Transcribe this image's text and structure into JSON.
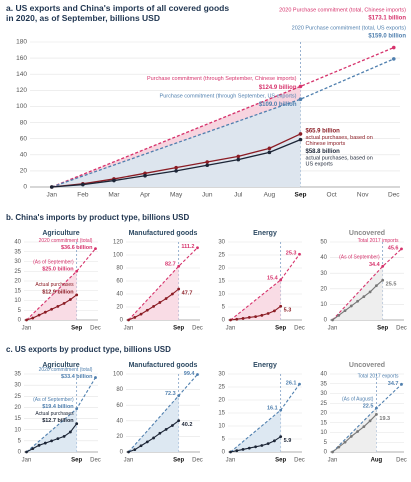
{
  "headings": [
    "b. China's imports by product type, billions USD",
    "c. US exports by product type, billions USD"
  ],
  "chart_data": [
    {
      "type": "line",
      "title": "a. US exports and China's imports of all covered goods in 2020, as of September, billions USD",
      "title_color": "#1f3550",
      "xlim": [
        0.3,
        12.2
      ],
      "xticks": [
        {
          "value": 1,
          "label": "Jan"
        },
        {
          "value": 2,
          "label": "Feb"
        },
        {
          "value": 3,
          "label": "Mar"
        },
        {
          "value": 4,
          "label": "Apr"
        },
        {
          "value": 5,
          "label": "May"
        },
        {
          "value": 6,
          "label": "Jun"
        },
        {
          "value": 7,
          "label": "Jul"
        },
        {
          "value": 8,
          "label": "Aug"
        },
        {
          "value": 9,
          "label": "Sep"
        },
        {
          "value": 10,
          "label": "Oct"
        },
        {
          "value": 11,
          "label": "Nov"
        },
        {
          "value": 12,
          "label": "Dec"
        }
      ],
      "ylim": [
        0,
        180
      ],
      "yticks": [
        0,
        20,
        40,
        60,
        80,
        100,
        120,
        140,
        160,
        180
      ],
      "highlight_x": 9,
      "grid": true,
      "series": [
        {
          "color": "#d6336c",
          "dash": true,
          "fill": "#f7d4df",
          "x": [
            1,
            9,
            12
          ],
          "values": [
            0,
            124.9,
            173.1
          ],
          "value_labels": [
            null,
            "$124.9 billion",
            "$173.1 billion"
          ],
          "notes": [
            null,
            "Purchase commitment (through September, Chinese imports)",
            "2020 Purchase commitment (total, Chinese imports)"
          ]
        },
        {
          "color": "#4f7fae",
          "dash": true,
          "fill": "#dde5ee",
          "x": [
            1,
            9,
            12
          ],
          "values": [
            0,
            109.0,
            159.0
          ],
          "value_labels": [
            null,
            "$109.0 billion",
            "$159.0 billion"
          ],
          "notes": [
            null,
            "Purchase commitment (through September, US exports)",
            "2020 Purchase commitment (total, US exports)"
          ]
        },
        {
          "color": "#8b1c24",
          "x": [
            1,
            2,
            3,
            4,
            5,
            6,
            7,
            8,
            9
          ],
          "values": [
            0,
            4,
            10,
            17,
            24,
            31,
            38,
            48,
            65.9
          ],
          "value_labels": [
            null,
            null,
            null,
            null,
            null,
            null,
            null,
            null,
            "$65.9 billion"
          ],
          "notes": [
            null,
            null,
            null,
            null,
            null,
            null,
            null,
            null,
            "actual purchases, based on Chinese imports"
          ]
        },
        {
          "color": "#1c2536",
          "x": [
            1,
            2,
            3,
            4,
            5,
            6,
            7,
            8,
            9
          ],
          "values": [
            0,
            3,
            8,
            14,
            20,
            27,
            34,
            43,
            58.8
          ],
          "value_labels": [
            null,
            null,
            null,
            null,
            null,
            null,
            null,
            null,
            "$58.8 billion"
          ],
          "notes": [
            null,
            null,
            null,
            null,
            null,
            null,
            null,
            null,
            "actual purchases, based on US exports"
          ]
        }
      ]
    },
    {
      "type": "line",
      "title": "Agriculture",
      "title_color": "#2d4a63",
      "xlim": [
        0.6,
        12.4
      ],
      "xticks": [
        {
          "value": 1,
          "label": "Jan"
        },
        {
          "value": 9,
          "label": "Sep"
        },
        {
          "value": 12,
          "label": "Dec"
        }
      ],
      "ylim": [
        0,
        40
      ],
      "yticks": [
        0,
        5,
        10,
        15,
        20,
        25,
        30,
        35,
        40
      ],
      "highlight_x": 9,
      "grid": true,
      "series": [
        {
          "color": "#d6336c",
          "dash": true,
          "fill": "#f9dce5",
          "x": [
            1,
            9,
            12
          ],
          "values": [
            0,
            25.0,
            36.6
          ],
          "value_labels": [
            null,
            "$25.0 billion",
            "$36.6 billion"
          ],
          "notes": [
            null,
            "(As of September)",
            "2020 commitment (total)"
          ]
        },
        {
          "color": "#8b1c24",
          "x": [
            1,
            2,
            3,
            4,
            5,
            6,
            7,
            8,
            9
          ],
          "values": [
            0,
            1,
            2.5,
            4,
            5.5,
            7,
            8.5,
            10.5,
            12.9
          ],
          "value_labels": [
            null,
            null,
            null,
            null,
            null,
            null,
            null,
            null,
            "$12.9 billion"
          ],
          "notes": [
            null,
            null,
            null,
            null,
            null,
            null,
            null,
            null,
            "Actual purchases"
          ]
        }
      ]
    },
    {
      "type": "line",
      "title": "Manufactured goods",
      "title_color": "#2d4a63",
      "xlim": [
        0.6,
        12.4
      ],
      "xticks": [
        {
          "value": 1,
          "label": "Jan"
        },
        {
          "value": 9,
          "label": "Sep"
        },
        {
          "value": 12,
          "label": "Dec"
        }
      ],
      "ylim": [
        0,
        120
      ],
      "yticks": [
        0,
        20,
        40,
        60,
        80,
        100,
        120
      ],
      "highlight_x": 9,
      "grid": true,
      "series": [
        {
          "color": "#d6336c",
          "dash": true,
          "fill": "#f9dce5",
          "x": [
            1,
            9,
            12
          ],
          "values": [
            0,
            82.7,
            111.2
          ]
        },
        {
          "color": "#8b1c24",
          "x": [
            1,
            2,
            3,
            4,
            5,
            6,
            7,
            8,
            9
          ],
          "values": [
            0,
            4,
            9,
            15,
            21,
            27,
            33,
            40,
            47.7
          ]
        }
      ]
    },
    {
      "type": "line",
      "title": "Energy",
      "title_color": "#2d4a63",
      "xlim": [
        0.6,
        12.4
      ],
      "xticks": [
        {
          "value": 1,
          "label": "Jan"
        },
        {
          "value": 9,
          "label": "Sep"
        },
        {
          "value": 12,
          "label": "Dec"
        }
      ],
      "ylim": [
        0,
        30
      ],
      "yticks": [
        0,
        5,
        10,
        15,
        20,
        25,
        30
      ],
      "highlight_x": 9,
      "grid": true,
      "series": [
        {
          "color": "#d6336c",
          "dash": true,
          "fill": "#f9dce5",
          "x": [
            1,
            9,
            12
          ],
          "values": [
            0,
            15.4,
            25.3
          ]
        },
        {
          "color": "#8b1c24",
          "x": [
            1,
            2,
            3,
            4,
            5,
            6,
            7,
            8,
            9
          ],
          "values": [
            0,
            0.3,
            0.6,
            1,
            1.3,
            1.8,
            2.5,
            3.5,
            5.3
          ]
        }
      ]
    },
    {
      "type": "line",
      "title": "Uncovered",
      "title_color": "#888888",
      "xlim": [
        0.6,
        12.4
      ],
      "xticks": [
        {
          "value": 1,
          "label": "Jan"
        },
        {
          "value": 9,
          "label": "Sep"
        },
        {
          "value": 12,
          "label": "Dec"
        }
      ],
      "ylim": [
        0,
        50
      ],
      "yticks": [
        0,
        10,
        20,
        30,
        40,
        50
      ],
      "highlight_x": 9,
      "grid": true,
      "series": [
        {
          "color": "#d6336c",
          "dash": true,
          "fill": "#eeeeee",
          "x": [
            1,
            9,
            12
          ],
          "values": [
            0,
            34.4,
            45.6
          ],
          "notes": [
            null,
            "(As of September)",
            "Total 2017 imports"
          ]
        },
        {
          "color": "#777777",
          "x": [
            1,
            2,
            3,
            4,
            5,
            6,
            7,
            8,
            9
          ],
          "values": [
            0,
            3,
            6,
            9,
            12,
            15,
            18,
            22,
            25.5
          ]
        }
      ]
    },
    {
      "type": "line",
      "title": "Agriculture",
      "title_color": "#2d4a63",
      "xlim": [
        0.6,
        12.4
      ],
      "xticks": [
        {
          "value": 1,
          "label": "Jan"
        },
        {
          "value": 9,
          "label": "Sep"
        },
        {
          "value": 12,
          "label": "Dec"
        }
      ],
      "ylim": [
        0,
        35
      ],
      "yticks": [
        0,
        5,
        10,
        15,
        20,
        25,
        30,
        35
      ],
      "highlight_x": 9,
      "grid": true,
      "series": [
        {
          "color": "#4f7fae",
          "dash": true,
          "fill": "#dde8f2",
          "x": [
            1,
            9,
            12
          ],
          "values": [
            0,
            19.4,
            33.4
          ],
          "value_labels": [
            null,
            "$19.4 billion",
            "$33.4 billion"
          ],
          "notes": [
            null,
            "(As of September)",
            "2020 commitment (total)"
          ]
        },
        {
          "color": "#1c2536",
          "x": [
            1,
            2,
            3,
            4,
            5,
            6,
            7,
            8,
            9
          ],
          "values": [
            0,
            1.5,
            3,
            4,
            5,
            6,
            7,
            9,
            12.7
          ],
          "value_labels": [
            null,
            null,
            null,
            null,
            null,
            null,
            null,
            null,
            "$12.7 billion"
          ],
          "notes": [
            null,
            null,
            null,
            null,
            null,
            null,
            null,
            null,
            "Actual purchases"
          ]
        }
      ]
    },
    {
      "type": "line",
      "title": "Manufactured goods",
      "title_color": "#2d4a63",
      "xlim": [
        0.6,
        12.4
      ],
      "xticks": [
        {
          "value": 1,
          "label": "Jan"
        },
        {
          "value": 9,
          "label": "Sep"
        },
        {
          "value": 12,
          "label": "Dec"
        }
      ],
      "ylim": [
        0,
        100
      ],
      "yticks": [
        0,
        20,
        40,
        60,
        80,
        100
      ],
      "highlight_x": 9,
      "grid": true,
      "series": [
        {
          "color": "#4f7fae",
          "dash": true,
          "fill": "#dde8f2",
          "x": [
            1,
            9,
            12
          ],
          "values": [
            0,
            72.3,
            99.4
          ]
        },
        {
          "color": "#1c2536",
          "x": [
            1,
            2,
            3,
            4,
            5,
            6,
            7,
            8,
            9
          ],
          "values": [
            0,
            3,
            8,
            13,
            18,
            24,
            29,
            34,
            40.2
          ]
        }
      ]
    },
    {
      "type": "line",
      "title": "Energy",
      "title_color": "#2d4a63",
      "xlim": [
        0.6,
        12.4
      ],
      "xticks": [
        {
          "value": 1,
          "label": "Jan"
        },
        {
          "value": 9,
          "label": "Sep"
        },
        {
          "value": 12,
          "label": "Dec"
        }
      ],
      "ylim": [
        0,
        30
      ],
      "yticks": [
        0,
        5,
        10,
        15,
        20,
        25,
        30
      ],
      "highlight_x": 9,
      "grid": true,
      "series": [
        {
          "color": "#4f7fae",
          "dash": true,
          "fill": "#dde8f2",
          "x": [
            1,
            9,
            12
          ],
          "values": [
            0,
            16.1,
            26.1
          ]
        },
        {
          "color": "#1c2536",
          "x": [
            1,
            2,
            3,
            4,
            5,
            6,
            7,
            8,
            9
          ],
          "values": [
            0,
            0.5,
            1,
            1.5,
            2,
            2.5,
            3.2,
            4.3,
            5.9
          ]
        }
      ]
    },
    {
      "type": "line",
      "title": "Uncovered",
      "title_color": "#888888",
      "xlim": [
        0.6,
        12.4
      ],
      "xticks": [
        {
          "value": 1,
          "label": "Jan"
        },
        {
          "value": 8,
          "label": "Aug"
        },
        {
          "value": 12,
          "label": "Dec"
        }
      ],
      "ylim": [
        0,
        40
      ],
      "yticks": [
        0,
        5,
        10,
        15,
        20,
        25,
        30,
        35,
        40
      ],
      "highlight_x": 8,
      "grid": true,
      "series": [
        {
          "color": "#4f7fae",
          "dash": true,
          "fill": "#eeeeee",
          "x": [
            1,
            8,
            12
          ],
          "values": [
            0,
            22.5,
            34.7
          ],
          "notes": [
            null,
            "(As of August)",
            "Total 2017 exports"
          ]
        },
        {
          "color": "#777777",
          "x": [
            1,
            2,
            3,
            4,
            5,
            6,
            7,
            8
          ],
          "values": [
            0,
            2.5,
            5,
            8,
            10.5,
            13,
            16,
            19.3
          ]
        }
      ]
    }
  ]
}
